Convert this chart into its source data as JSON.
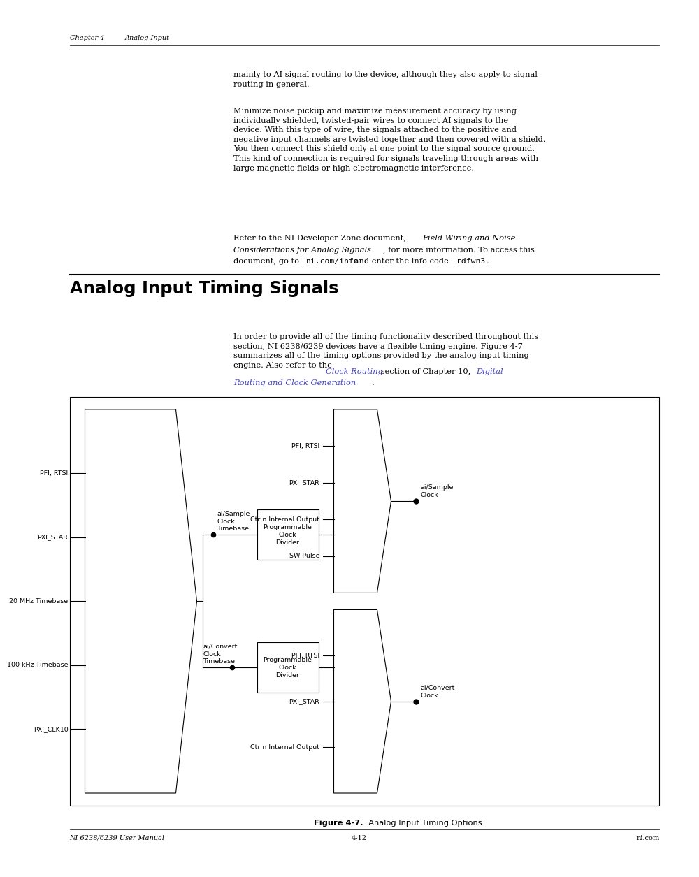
{
  "page_bg": "#ffffff",
  "page_width": 9.54,
  "page_height": 12.35,
  "header_left": "Chapter 4",
  "header_right": "Analog Input",
  "footer_left": "NI 6238/6239 User Manual",
  "footer_center": "4-12",
  "footer_right": "ni.com",
  "section_title": "Analog Input Timing Signals",
  "left_inputs": [
    "PFI, RTSI",
    "PXI_STAR",
    "20 MHz Timebase",
    "100 kHz Timebase",
    "PXI_CLK10"
  ],
  "upper_right_inputs": [
    "PFI, RTSI",
    "PXI_STAR",
    "Ctr n Internal Output",
    "SW Pulse"
  ],
  "lower_right_inputs": [
    "PFI, RTSI",
    "PXI_STAR",
    "Ctr n Internal Output"
  ],
  "figure_caption_bold": "Figure 4-7.",
  "figure_caption_normal": "  Analog Input Timing Options"
}
